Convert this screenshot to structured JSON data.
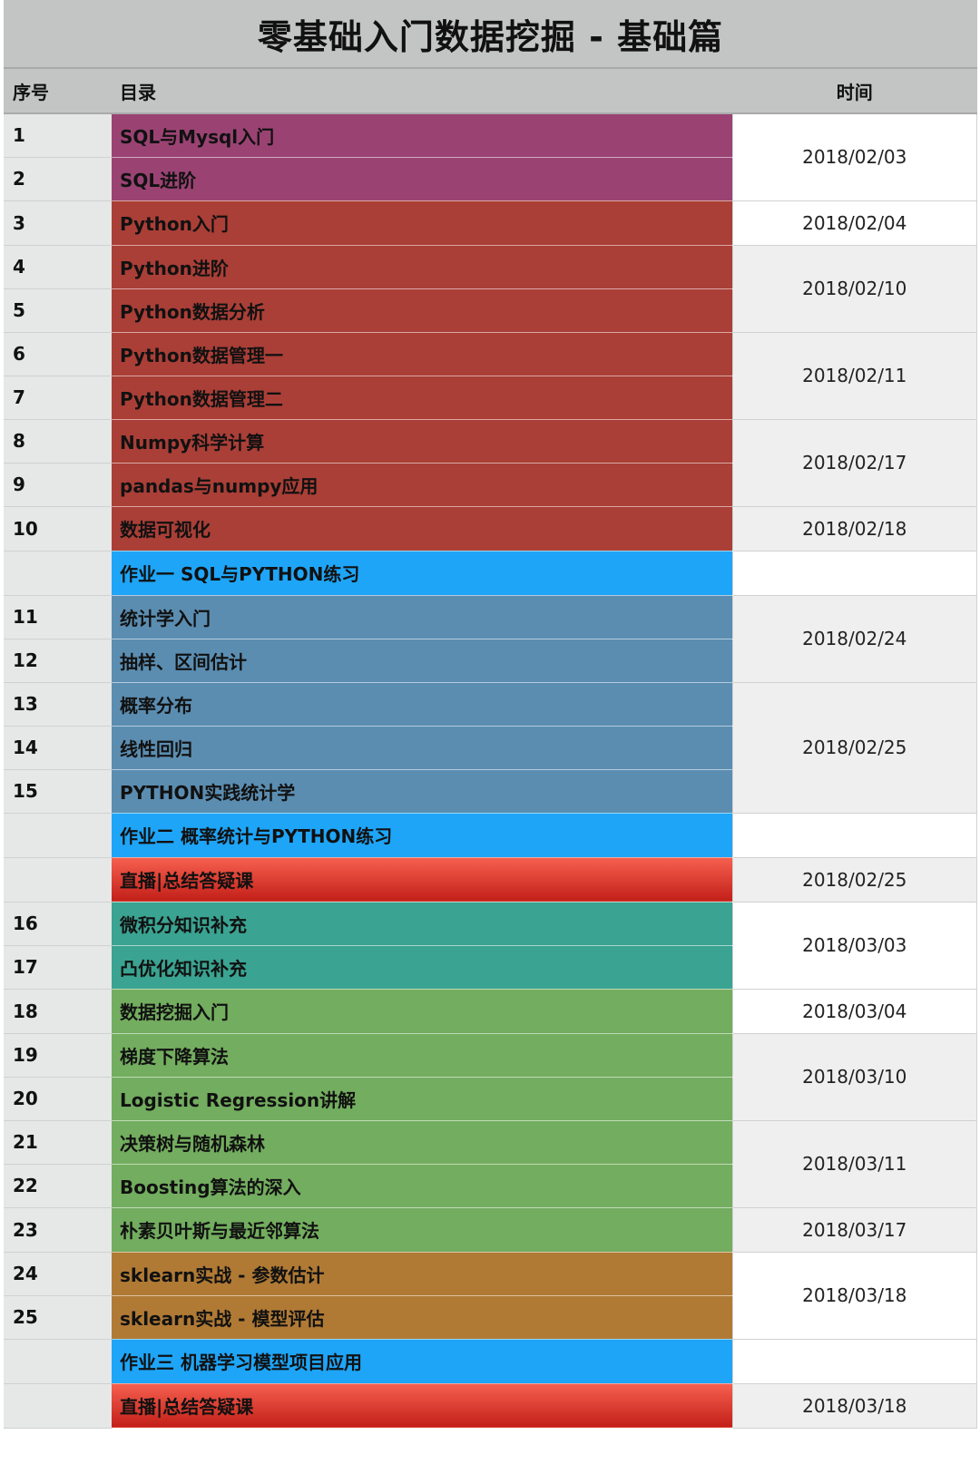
{
  "title": "零基础入门数据挖掘 - 基础篇",
  "headers": {
    "num": "序号",
    "title": "目录",
    "date": "时间"
  },
  "colors": {
    "sql": "#9a4373",
    "python": "#aa3f37",
    "homework": "#1ea5f7",
    "stats": "#5b8db1",
    "live": "#e0433a",
    "math": "#3aa391",
    "ml": "#73ad5f",
    "sklearn": "#b07a35"
  },
  "rows": [
    {
      "num": "1",
      "title": "SQL与Mysql入门",
      "group": "sql"
    },
    {
      "num": "2",
      "title": "SQL进阶",
      "group": "sql"
    },
    {
      "num": "3",
      "title": "Python入门",
      "group": "python"
    },
    {
      "num": "4",
      "title": "Python进阶",
      "group": "python"
    },
    {
      "num": "5",
      "title": "Python数据分析",
      "group": "python"
    },
    {
      "num": "6",
      "title": "Python数据管理一",
      "group": "python"
    },
    {
      "num": "7",
      "title": "Python数据管理二",
      "group": "python"
    },
    {
      "num": "8",
      "title": "Numpy科学计算",
      "group": "python"
    },
    {
      "num": "9",
      "title": "pandas与numpy应用",
      "group": "python"
    },
    {
      "num": "10",
      "title": "数据可视化",
      "group": "python"
    },
    {
      "num": "",
      "title": "作业一 SQL与PYTHON练习",
      "group": "homework"
    },
    {
      "num": "11",
      "title": "统计学入门",
      "group": "stats"
    },
    {
      "num": "12",
      "title": "抽样、区间估计",
      "group": "stats"
    },
    {
      "num": "13",
      "title": "概率分布",
      "group": "stats"
    },
    {
      "num": "14",
      "title": "线性回归",
      "group": "stats"
    },
    {
      "num": "15",
      "title": "PYTHON实践统计学",
      "group": "stats"
    },
    {
      "num": "",
      "title": "作业二 概率统计与PYTHON练习",
      "group": "homework"
    },
    {
      "num": "",
      "title": "直播|总结答疑课",
      "group": "live"
    },
    {
      "num": "16",
      "title": "微积分知识补充",
      "group": "math"
    },
    {
      "num": "17",
      "title": "凸优化知识补充",
      "group": "math"
    },
    {
      "num": "18",
      "title": "数据挖掘入门",
      "group": "ml"
    },
    {
      "num": "19",
      "title": "梯度下降算法",
      "group": "ml"
    },
    {
      "num": "20",
      "title": "Logistic Regression讲解",
      "group": "ml"
    },
    {
      "num": "21",
      "title": "决策树与随机森林",
      "group": "ml"
    },
    {
      "num": "22",
      "title": "Boosting算法的深入",
      "group": "ml"
    },
    {
      "num": "23",
      "title": "朴素贝叶斯与最近邻算法",
      "group": "ml"
    },
    {
      "num": "24",
      "title": "sklearn实战 - 参数估计",
      "group": "sklearn"
    },
    {
      "num": "25",
      "title": "sklearn实战 - 模型评估",
      "group": "sklearn"
    },
    {
      "num": "",
      "title": "作业三 机器学习模型项目应用",
      "group": "homework"
    },
    {
      "num": "",
      "title": "直播|总结答疑课",
      "group": "live"
    }
  ],
  "dates": [
    {
      "date": "2018/02/03",
      "span": 2,
      "shade": "white"
    },
    {
      "date": "2018/02/04",
      "span": 1,
      "shade": "white"
    },
    {
      "date": "2018/02/10",
      "span": 2,
      "shade": "gray"
    },
    {
      "date": "2018/02/11",
      "span": 2,
      "shade": "gray"
    },
    {
      "date": "2018/02/17",
      "span": 2,
      "shade": "gray"
    },
    {
      "date": "2018/02/18",
      "span": 1,
      "shade": "gray"
    },
    {
      "date": "",
      "span": 1,
      "shade": "white"
    },
    {
      "date": "2018/02/24",
      "span": 2,
      "shade": "gray"
    },
    {
      "date": "2018/02/25",
      "span": 3,
      "shade": "gray"
    },
    {
      "date": "",
      "span": 1,
      "shade": "white"
    },
    {
      "date": "2018/02/25",
      "span": 1,
      "shade": "gray"
    },
    {
      "date": "2018/03/03",
      "span": 2,
      "shade": "white"
    },
    {
      "date": "2018/03/04",
      "span": 1,
      "shade": "white"
    },
    {
      "date": "2018/03/10",
      "span": 2,
      "shade": "gray"
    },
    {
      "date": "2018/03/11",
      "span": 2,
      "shade": "gray"
    },
    {
      "date": "2018/03/17",
      "span": 1,
      "shade": "gray"
    },
    {
      "date": "2018/03/18",
      "span": 2,
      "shade": "white"
    },
    {
      "date": "",
      "span": 1,
      "shade": "white"
    },
    {
      "date": "2018/03/18",
      "span": 1,
      "shade": "gray"
    }
  ]
}
